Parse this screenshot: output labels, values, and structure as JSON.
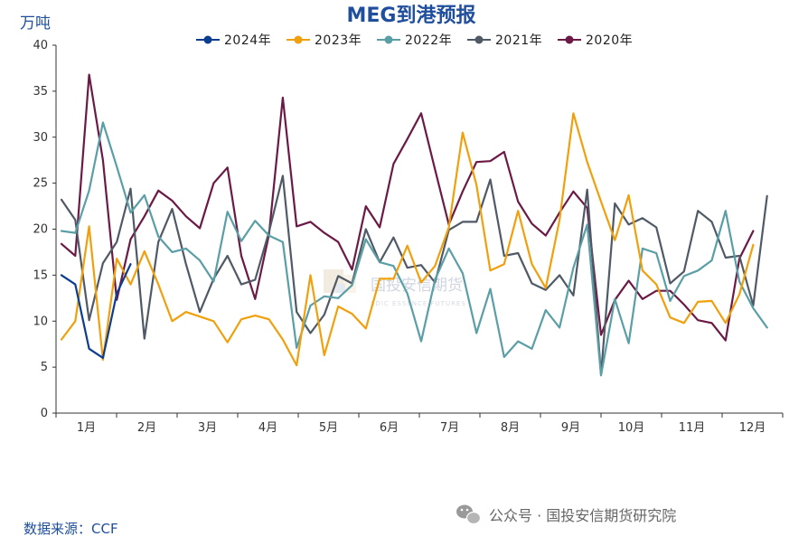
{
  "chart_data": {
    "type": "line",
    "title": "MEG到港预报",
    "ylabel": "万吨",
    "ylim": [
      0,
      40
    ],
    "yticks": [
      0,
      5,
      10,
      15,
      20,
      25,
      30,
      35,
      40
    ],
    "x_min": 1,
    "x_max": 53,
    "categories": [
      "1月",
      "2月",
      "3月",
      "4月",
      "5月",
      "6月",
      "7月",
      "8月",
      "9月",
      "10月",
      "11月",
      "12月"
    ],
    "grid": false,
    "legend_position": "top",
    "series": [
      {
        "name": "2024年",
        "color": "#0b3d91",
        "x": [
          1,
          2,
          3,
          4,
          5,
          6
        ],
        "y": [
          15,
          14,
          7,
          6,
          13,
          16.2
        ]
      },
      {
        "name": "2023年",
        "color": "#f0a00c",
        "x": [
          1,
          2,
          3,
          4,
          5,
          6,
          7,
          8,
          9,
          10,
          11,
          12,
          13,
          14,
          15,
          16,
          17,
          18,
          19,
          20,
          21,
          22,
          23,
          24,
          25,
          26,
          27,
          28,
          29,
          30,
          31,
          32,
          33,
          34,
          35,
          36,
          37,
          38,
          39,
          40,
          41,
          42,
          43,
          44,
          45,
          46,
          47,
          48,
          49,
          50,
          51,
          52,
          53
        ],
        "y": [
          8,
          10,
          20.3,
          5.8,
          16.8,
          14,
          17.6,
          14,
          10,
          11,
          10.5,
          10,
          7.7,
          10.2,
          10.6,
          10.2,
          8,
          5.2,
          15,
          6.3,
          11.6,
          10.8,
          9.2,
          14.6,
          14.6,
          18.2,
          14.2,
          16,
          20.2,
          30.5,
          24.8,
          15.5,
          16.2,
          22,
          16.2,
          13.6,
          21,
          32.6,
          27.3,
          23,
          18.8,
          23.7,
          15.5,
          14,
          10.4,
          9.8,
          12.1,
          12.2,
          9.8,
          12.9,
          18.3,
          null,
          null
        ]
      },
      {
        "name": "2022年",
        "color": "#5a9ea6",
        "x": [
          1,
          2,
          3,
          4,
          5,
          6,
          7,
          8,
          9,
          10,
          11,
          12,
          13,
          14,
          15,
          16,
          17,
          18,
          19,
          20,
          21,
          22,
          23,
          24,
          25,
          26,
          27,
          28,
          29,
          30,
          31,
          32,
          33,
          34,
          35,
          36,
          37,
          38,
          39,
          40,
          41,
          42,
          43,
          44,
          45,
          46,
          47,
          48,
          49,
          50,
          51,
          52,
          53
        ],
        "y": [
          19.8,
          19.6,
          24.2,
          31.6,
          26.8,
          21.8,
          23.7,
          19.2,
          17.5,
          17.9,
          16.6,
          14.3,
          21.9,
          18.7,
          20.9,
          19.3,
          18.6,
          7.1,
          11.7,
          12.7,
          12.5,
          13.9,
          18.9,
          16.4,
          16,
          13,
          7.8,
          14.5,
          17.9,
          15.2,
          8.7,
          13.5,
          6.1,
          7.8,
          7,
          11.2,
          9.3,
          15.8,
          20.5,
          4.1,
          12.4,
          7.6,
          17.9,
          17.4,
          12.2,
          14.9,
          15.5,
          16.6,
          22,
          14.3,
          11.4,
          9.3,
          null
        ]
      },
      {
        "name": "2021年",
        "color": "#505a66",
        "x": [
          1,
          2,
          3,
          4,
          5,
          6,
          7,
          8,
          9,
          10,
          11,
          12,
          13,
          14,
          15,
          16,
          17,
          18,
          19,
          20,
          21,
          22,
          23,
          24,
          25,
          26,
          27,
          28,
          29,
          30,
          31,
          32,
          33,
          34,
          35,
          36,
          37,
          38,
          39,
          40,
          41,
          42,
          43,
          44,
          45,
          46,
          47,
          48,
          49,
          50,
          51,
          52,
          53
        ],
        "y": [
          23.2,
          21,
          10.1,
          16.3,
          18.6,
          24.4,
          8.1,
          18.6,
          22.2,
          16.2,
          11,
          14.6,
          17.1,
          14,
          14.5,
          19.7,
          25.8,
          11,
          8.7,
          10.7,
          14.9,
          14.1,
          20,
          16.4,
          19.1,
          15.8,
          16.1,
          14.2,
          19.9,
          20.8,
          20.8,
          25.4,
          17.1,
          17.4,
          14.1,
          13.4,
          15,
          12.8,
          24.3,
          4.2,
          22.8,
          20.5,
          21.2,
          20.2,
          14.1,
          15.4,
          22,
          20.8,
          16.9,
          17.1,
          11.7,
          23.6,
          null
        ]
      },
      {
        "name": "2020年",
        "color": "#6b1a45",
        "x": [
          1,
          2,
          3,
          4,
          5,
          6,
          7,
          8,
          9,
          10,
          11,
          12,
          13,
          14,
          15,
          16,
          17,
          18,
          19,
          20,
          21,
          22,
          23,
          24,
          25,
          26,
          27,
          28,
          29,
          30,
          31,
          32,
          33,
          34,
          35,
          36,
          37,
          38,
          39,
          40,
          41,
          42,
          43,
          44,
          45,
          46,
          47,
          48,
          49,
          50,
          51,
          52,
          53
        ],
        "y": [
          18.4,
          17.1,
          36.8,
          27.5,
          12.3,
          18.9,
          21.4,
          24.2,
          23.1,
          21.4,
          20.1,
          25,
          26.7,
          17.1,
          12.4,
          19.4,
          34.3,
          20.3,
          20.8,
          19.6,
          18.6,
          15.6,
          22.5,
          20.2,
          27.1,
          29.8,
          32.6,
          26.5,
          20.5,
          24.1,
          27.3,
          27.4,
          28.4,
          23,
          20.6,
          19.3,
          21.8,
          24.1,
          22.3,
          8.5,
          12.3,
          14.4,
          12.4,
          13.3,
          13.3,
          11.8,
          10.1,
          9.8,
          7.9,
          16.8,
          19.8,
          null,
          null
        ]
      }
    ]
  },
  "page": {
    "title": "MEG到港预报",
    "unit": "万吨",
    "source": "数据来源：CCF",
    "watermark_main": "国投安信期货",
    "watermark_sub": "SDIC ESSENCE FUTURES",
    "footer_brand": "公众号 · 国投安信期货研究院"
  },
  "icons": {
    "footer_icon": "wechat-icon",
    "watermark_logo": "sdic-logo-icon"
  }
}
